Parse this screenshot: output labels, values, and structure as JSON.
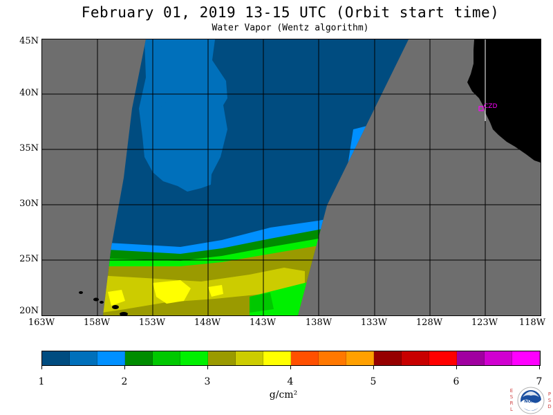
{
  "header": {
    "title": "February 01, 2019  13-15 UTC  (Orbit start time)",
    "subtitle": "Water Vapor (Wentz algorithm)"
  },
  "map": {
    "lat_labels": [
      "45N",
      "40N",
      "35N",
      "30N",
      "25N",
      "20N"
    ],
    "lon_labels": [
      "163W",
      "158W",
      "153W",
      "148W",
      "143W",
      "138W",
      "133W",
      "128W",
      "123W",
      "118W"
    ],
    "lat_range": [
      20,
      45
    ],
    "lon_range": [
      -163,
      -118
    ],
    "no_data_color": "#6e6e6e",
    "land_color": "#000000",
    "grid_color": "#000000",
    "station_label": "CZD",
    "station_color": "#ff00ff"
  },
  "colorbar": {
    "unit": "g/cm²",
    "tick_labels": [
      "1",
      "2",
      "3",
      "4",
      "5",
      "6",
      "7"
    ],
    "range": [
      1,
      7
    ],
    "colors": [
      "#004c80",
      "#0070bb",
      "#0090ff",
      "#008c00",
      "#00c800",
      "#00f000",
      "#9a9a00",
      "#cccc00",
      "#ffff00",
      "#ff5000",
      "#ff7800",
      "#ffa000",
      "#960000",
      "#c80000",
      "#ff0000",
      "#a000a0",
      "#d000d0",
      "#ff00ff"
    ]
  },
  "logo": {
    "left_letters": [
      "E",
      "S",
      "R",
      "L"
    ],
    "right_letters": [
      "P",
      "S",
      "D"
    ],
    "center_text": "NOAA"
  }
}
